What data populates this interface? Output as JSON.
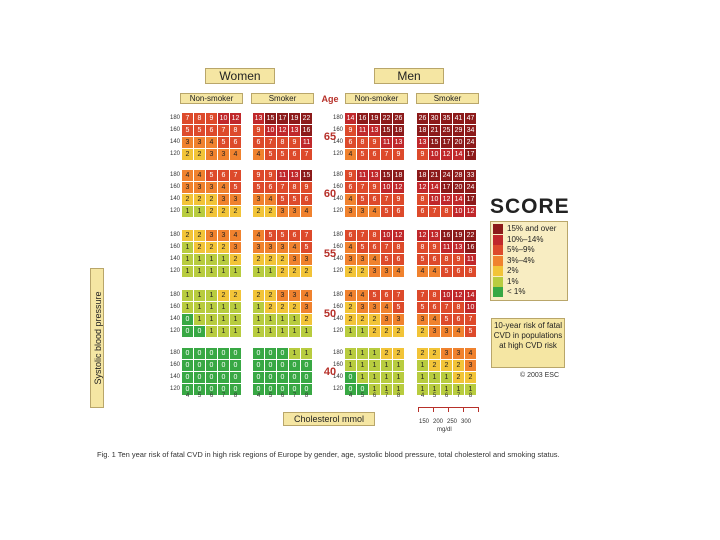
{
  "chart_data": {
    "type": "heatmap",
    "title": "",
    "gender_labels": [
      "Women",
      "Men"
    ],
    "smoking_labels": [
      "Non-smoker",
      "Smoker"
    ],
    "age_header": "Age",
    "ages": [
      "65",
      "60",
      "55",
      "50",
      "40"
    ],
    "sbp_levels": [
      "180",
      "160",
      "140",
      "120"
    ],
    "cholesterol_levels": [
      "4",
      "5",
      "6",
      "7",
      "8"
    ],
    "ylabel": "Systolic blood pressure",
    "xlabel": "Cholesterol mmol",
    "mgdl_labels": [
      "150",
      "200",
      "250",
      "300"
    ],
    "mgdl_unit": "mg/dl",
    "panels": [
      {
        "gender": "Women",
        "smoking": "Non-smoker",
        "rows": [
          [
            [
              7,
              8,
              9,
              10,
              12
            ],
            [
              5,
              5,
              6,
              7,
              8
            ],
            [
              3,
              3,
              4,
              5,
              6
            ],
            [
              2,
              2,
              3,
              3,
              4
            ]
          ],
          [
            [
              4,
              4,
              5,
              6,
              7
            ],
            [
              3,
              3,
              3,
              4,
              5
            ],
            [
              2,
              2,
              2,
              3,
              3
            ],
            [
              1,
              1,
              2,
              2,
              2
            ]
          ],
          [
            [
              2,
              2,
              3,
              3,
              4
            ],
            [
              1,
              2,
              2,
              2,
              3
            ],
            [
              1,
              1,
              1,
              1,
              2
            ],
            [
              1,
              1,
              1,
              1,
              1
            ]
          ],
          [
            [
              1,
              1,
              1,
              2,
              2
            ],
            [
              1,
              1,
              1,
              1,
              1
            ],
            [
              0,
              1,
              1,
              1,
              1
            ],
            [
              0,
              0,
              1,
              1,
              1
            ]
          ],
          [
            [
              0,
              0,
              0,
              0,
              0
            ],
            [
              0,
              0,
              0,
              0,
              0
            ],
            [
              0,
              0,
              0,
              0,
              0
            ],
            [
              0,
              0,
              0,
              0,
              0
            ]
          ]
        ]
      },
      {
        "gender": "Women",
        "smoking": "Smoker",
        "rows": [
          [
            [
              13,
              15,
              17,
              19,
              22
            ],
            [
              9,
              10,
              12,
              13,
              16
            ],
            [
              6,
              7,
              8,
              9,
              11
            ],
            [
              4,
              5,
              5,
              6,
              7
            ]
          ],
          [
            [
              9,
              9,
              11,
              13,
              15
            ],
            [
              5,
              6,
              7,
              8,
              9
            ],
            [
              3,
              4,
              5,
              5,
              6
            ],
            [
              2,
              2,
              3,
              3,
              4
            ]
          ],
          [
            [
              4,
              5,
              5,
              6,
              7
            ],
            [
              3,
              3,
              3,
              4,
              5
            ],
            [
              2,
              2,
              2,
              3,
              3
            ],
            [
              1,
              1,
              2,
              2,
              2
            ]
          ],
          [
            [
              2,
              2,
              3,
              3,
              4
            ],
            [
              1,
              2,
              2,
              2,
              3
            ],
            [
              1,
              1,
              1,
              1,
              2
            ],
            [
              1,
              1,
              1,
              1,
              1
            ]
          ],
          [
            [
              0,
              0,
              0,
              1,
              1
            ],
            [
              0,
              0,
              0,
              0,
              0
            ],
            [
              0,
              0,
              0,
              0,
              0
            ],
            [
              0,
              0,
              0,
              0,
              0
            ]
          ]
        ]
      },
      {
        "gender": "Men",
        "smoking": "Non-smoker",
        "rows": [
          [
            [
              14,
              16,
              19,
              22,
              26
            ],
            [
              9,
              11,
              13,
              15,
              18
            ],
            [
              6,
              8,
              9,
              11,
              13
            ],
            [
              4,
              5,
              6,
              7,
              9
            ]
          ],
          [
            [
              9,
              11,
              13,
              15,
              18
            ],
            [
              6,
              7,
              9,
              10,
              12
            ],
            [
              4,
              5,
              6,
              7,
              9
            ],
            [
              3,
              3,
              4,
              5,
              6
            ]
          ],
          [
            [
              6,
              7,
              8,
              10,
              12
            ],
            [
              4,
              5,
              6,
              7,
              8
            ],
            [
              3,
              3,
              4,
              5,
              6
            ],
            [
              2,
              2,
              3,
              3,
              4
            ]
          ],
          [
            [
              4,
              4,
              5,
              6,
              7
            ],
            [
              2,
              3,
              3,
              4,
              5
            ],
            [
              2,
              2,
              2,
              3,
              3
            ],
            [
              1,
              1,
              2,
              2,
              2
            ]
          ],
          [
            [
              1,
              1,
              1,
              2,
              2
            ],
            [
              1,
              1,
              1,
              1,
              1
            ],
            [
              0,
              1,
              1,
              1,
              1
            ],
            [
              0,
              0,
              1,
              1,
              1
            ]
          ]
        ]
      },
      {
        "gender": "Men",
        "smoking": "Smoker",
        "rows": [
          [
            [
              26,
              30,
              35,
              41,
              47
            ],
            [
              18,
              21,
              25,
              29,
              34
            ],
            [
              13,
              15,
              17,
              20,
              24
            ],
            [
              9,
              10,
              12,
              14,
              17
            ]
          ],
          [
            [
              18,
              21,
              24,
              28,
              33
            ],
            [
              12,
              14,
              17,
              20,
              24
            ],
            [
              8,
              10,
              12,
              14,
              17
            ],
            [
              6,
              7,
              8,
              10,
              12
            ]
          ],
          [
            [
              12,
              13,
              16,
              19,
              22
            ],
            [
              8,
              9,
              11,
              13,
              16
            ],
            [
              5,
              6,
              8,
              9,
              11
            ],
            [
              4,
              4,
              5,
              6,
              8
            ]
          ],
          [
            [
              7,
              8,
              10,
              12,
              14
            ],
            [
              5,
              6,
              7,
              8,
              10
            ],
            [
              3,
              4,
              5,
              6,
              7
            ],
            [
              2,
              3,
              3,
              4,
              5
            ]
          ],
          [
            [
              2,
              2,
              3,
              3,
              4
            ],
            [
              1,
              2,
              2,
              2,
              3
            ],
            [
              1,
              1,
              1,
              2,
              2
            ],
            [
              1,
              1,
              1,
              1,
              1
            ]
          ]
        ]
      }
    ],
    "legend": [
      {
        "label": "15% and over",
        "color": "#8c1a1a"
      },
      {
        "label": "10%–14%",
        "color": "#c0282b"
      },
      {
        "label": "5%–9%",
        "color": "#dd4a2b"
      },
      {
        "label": "3%–4%",
        "color": "#f0822e"
      },
      {
        "label": "2%",
        "color": "#f2c438"
      },
      {
        "label": "1%",
        "color": "#b8cc3f"
      },
      {
        "label": "< 1%",
        "color": "#38a844"
      }
    ]
  },
  "logo_text": "SCORE",
  "risk_note": "10-year risk of fatal CVD in populations at high CVD risk",
  "copyright": "© 2003 ESC",
  "caption": "Fig. 1   Ten year risk of fatal CVD in high risk regions of Europe by gender, age, systolic blood pressure, total cholesterol and smoking status."
}
